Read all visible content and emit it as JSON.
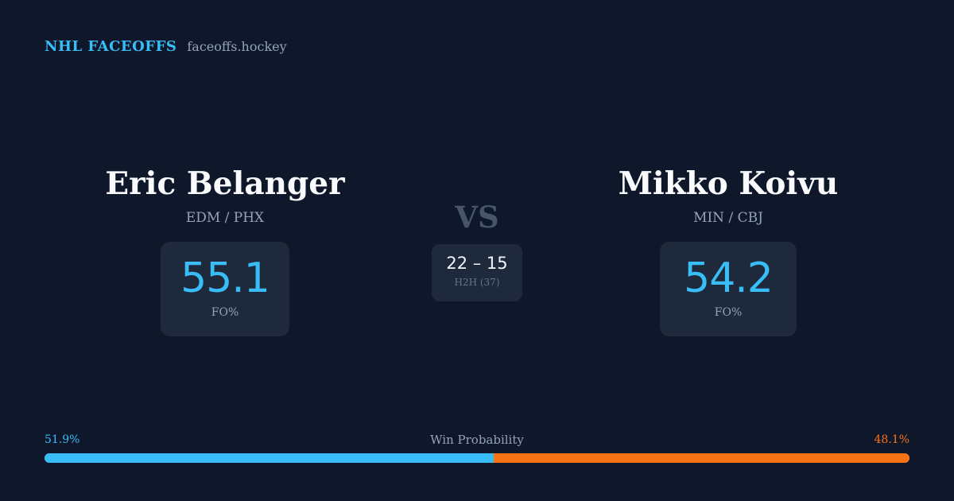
{
  "brand": {
    "name": "NHL FACEOFFS",
    "url": "faceoffs.hockey"
  },
  "players": {
    "left": {
      "name": "Eric Belanger",
      "teams": "EDM / PHX",
      "fo_pct": "55.1",
      "fo_label": "FO%"
    },
    "right": {
      "name": "Mikko Koivu",
      "teams": "MIN / CBJ",
      "fo_pct": "54.2",
      "fo_label": "FO%"
    }
  },
  "vs_label": "VS",
  "head_to_head": {
    "score": "22 – 15",
    "label": "H2H (37)"
  },
  "win_probability": {
    "title": "Win Probability",
    "left_label": "51.9%",
    "right_label": "48.1%",
    "left_value": 51.9,
    "right_value": 48.1
  },
  "colors": {
    "background": "#0f172a",
    "accent_left": "#38bdf8",
    "accent_right": "#f97316",
    "card": "#1e293b"
  }
}
